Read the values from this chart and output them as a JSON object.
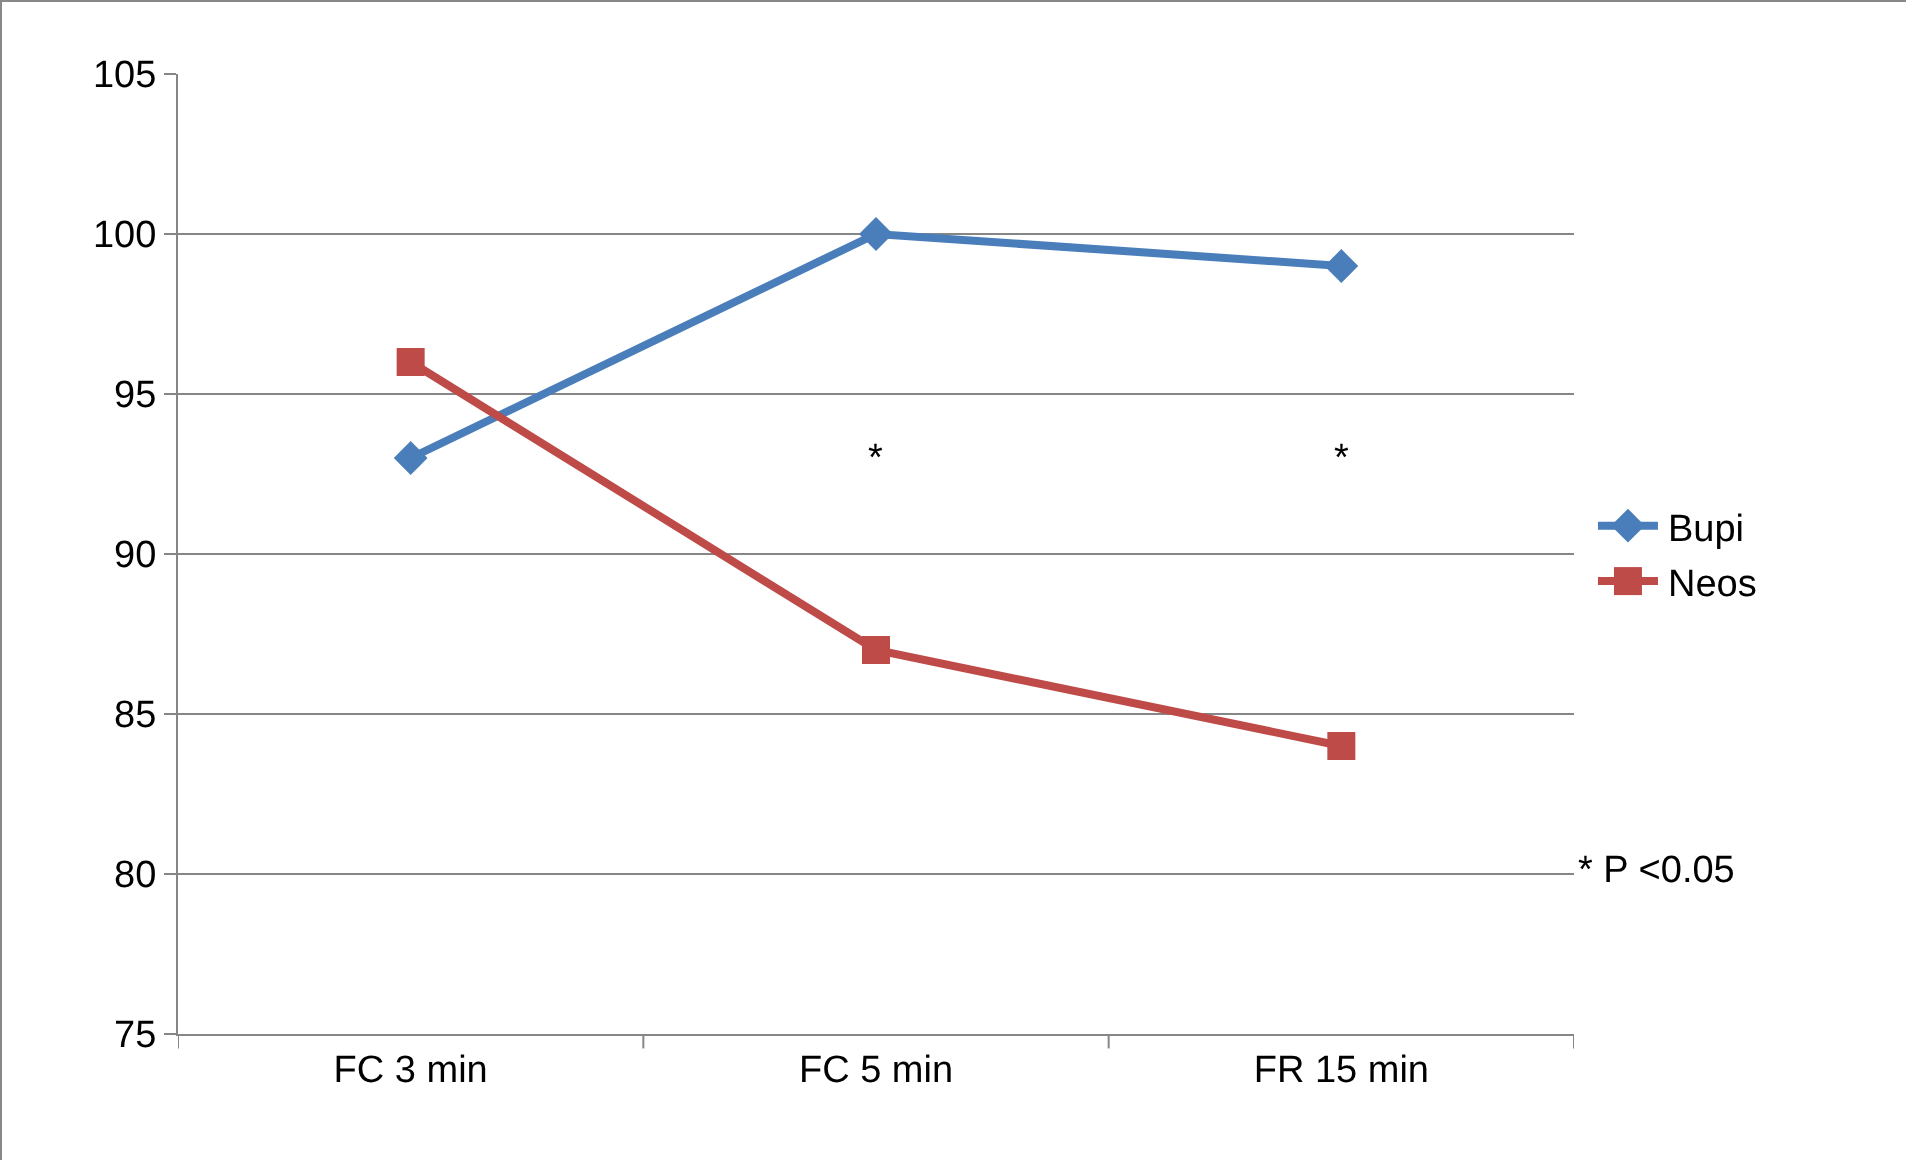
{
  "chart_data": {
    "type": "line",
    "categories": [
      "FC 3 min",
      "FC 5 min",
      "FR 15 min"
    ],
    "series": [
      {
        "name": "Bupi",
        "color": "#4a7ebb",
        "values": [
          93,
          100,
          99
        ],
        "marker": "diamond"
      },
      {
        "name": "Neos",
        "color": "#be4b48",
        "values": [
          96,
          87,
          84
        ],
        "marker": "square"
      }
    ],
    "ylim": [
      75,
      105
    ],
    "yticks": [
      75,
      80,
      85,
      90,
      95,
      100,
      105
    ],
    "grid": "y",
    "legend": "right",
    "line_style": "solid",
    "annotations": [
      "*",
      "*",
      "* P <0.05"
    ]
  }
}
